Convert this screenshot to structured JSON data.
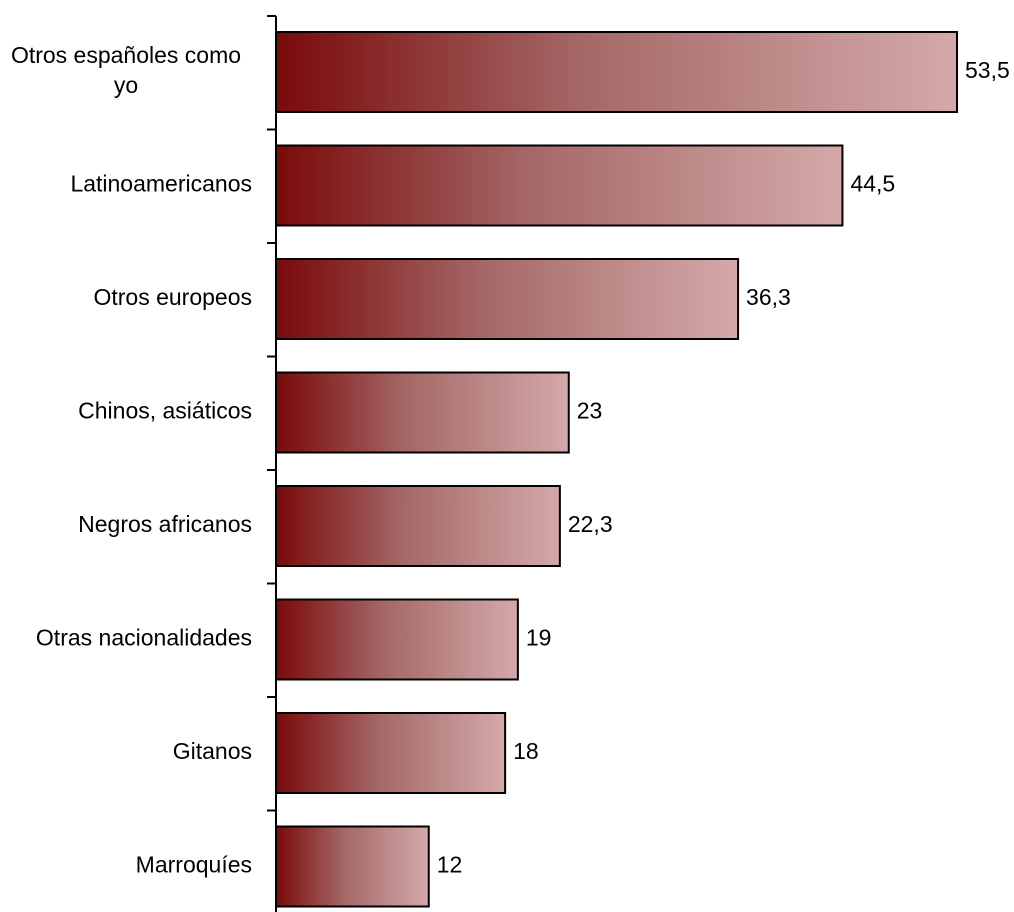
{
  "chart_data": {
    "type": "bar",
    "orientation": "horizontal",
    "categories": [
      [
        "Otros españoles como",
        "yo"
      ],
      [
        "Latinoamericanos"
      ],
      [
        "Otros europeos"
      ],
      [
        "Chinos, asiáticos"
      ],
      [
        "Negros africanos"
      ],
      [
        "Otras nacionalidades"
      ],
      [
        "Gitanos"
      ],
      [
        "Marroquíes"
      ]
    ],
    "values": [
      53.5,
      44.5,
      36.3,
      23,
      22.3,
      19,
      18,
      12
    ],
    "value_labels": [
      "53,5",
      "44,5",
      "36,3",
      "23",
      "22,3",
      "19",
      "18",
      "12"
    ],
    "title": "",
    "xlabel": "",
    "ylabel": "",
    "xlim": [
      0,
      53.5
    ],
    "grid": false,
    "legend": "none",
    "colors": {
      "bar_gradient_start": "#7a0a0a",
      "bar_gradient_mid": "#a56868",
      "bar_gradient_end": "#d4a9a9",
      "bar_stroke": "#000000",
      "axis": "#000000"
    }
  }
}
